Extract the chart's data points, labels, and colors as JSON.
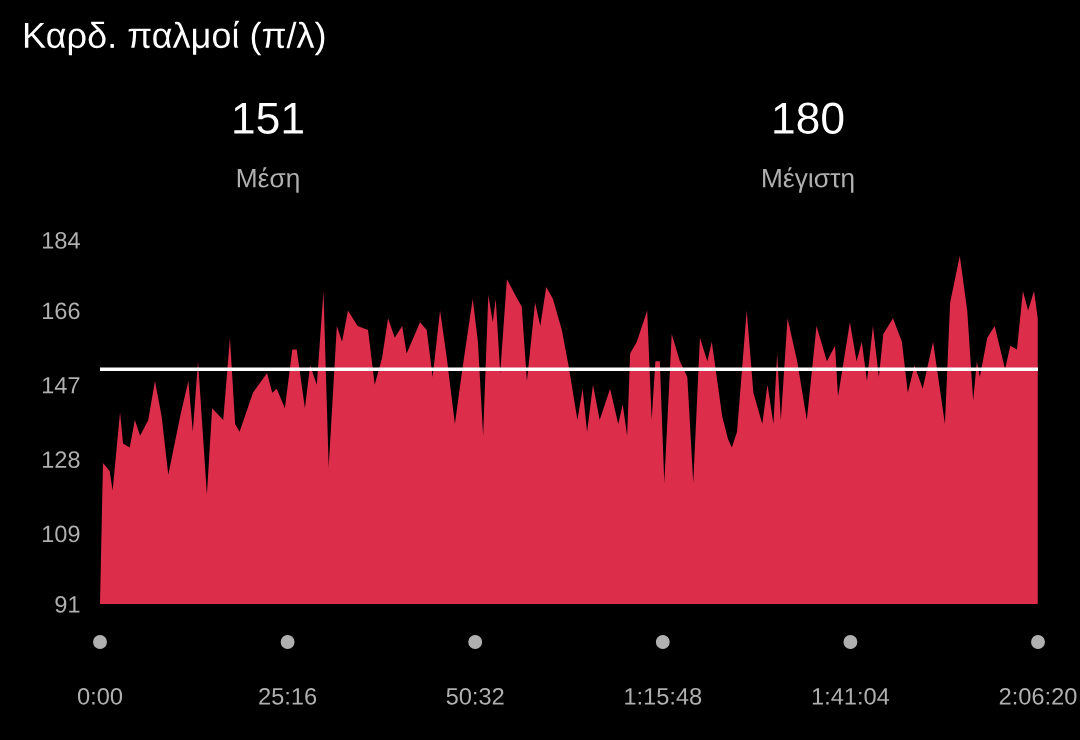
{
  "chart_data": {
    "type": "area",
    "title": "Καρδ. παλμοί (π/λ)",
    "annotations": [
      "151",
      "Μέση",
      "180",
      "Μέγιστη"
    ],
    "x": [
      0,
      0.4,
      1.3,
      1.7,
      2.7,
      3.1,
      4.0,
      4.7,
      5.4,
      6.5,
      7.4,
      8.3,
      9.2,
      10.8,
      11.9,
      12.5,
      13.2,
      14.4,
      15.1,
      16.6,
      17.5,
      18.2,
      18.8,
      20.6,
      22.5,
      23.2,
      23.8,
      24.9,
      25.9,
      26.5,
      27.6,
      28.3,
      29.2,
      30.1,
      30.8,
      31.9,
      32.6,
      33.4,
      34.7,
      36.1,
      37.0,
      38.0,
      38.8,
      39.7,
      40.7,
      41.3,
      43.1,
      44.0,
      44.8,
      45.8,
      46.7,
      47.8,
      48.8,
      50.2,
      50.9,
      51.6,
      52.3,
      52.9,
      53.3,
      53.9,
      54.8,
      56.2,
      56.8,
      57.5,
      58.6,
      59.3,
      60.1,
      61.0,
      62.2,
      63.1,
      64.3,
      65.0,
      65.6,
      66.4,
      67.3,
      68.7,
      69.8,
      70.4,
      71.0,
      71.4,
      72.3,
      73.7,
      74.3,
      74.8,
      75.4,
      76.0,
      77.0,
      78.1,
      79.1,
      79.9,
      80.8,
      81.8,
      82.4,
      83.8,
      84.6,
      85.1,
      85.8,
      87.1,
      88.0,
      89.2,
      89.9,
      90.7,
      91.2,
      91.7,
      92.6,
      93.9,
      95.2,
      96.5,
      97.9,
      99.0,
      99.4,
      101.0,
      101.9,
      102.6,
      103.3,
      104.1,
      104.9,
      105.5,
      106.8,
      108.0,
      108.8,
      109.7,
      110.8,
      112.2,
      113.8,
      114.5,
      115.8,
      116.8,
      117.6,
      118.1,
      118.5,
      119.5,
      120.5,
      121.9,
      122.6,
      123.5,
      124.3,
      125.0,
      125.8,
      126.3
    ],
    "series": [
      {
        "color": "#dc2d4b",
        "values": [
          91,
          127,
          125,
          120,
          140,
          132,
          131,
          138,
          134,
          138,
          148,
          139,
          124,
          139,
          148,
          135,
          153,
          119,
          141,
          138,
          159,
          137,
          135,
          145,
          150,
          145,
          146,
          141,
          156,
          156,
          141,
          152,
          147,
          171,
          126,
          162,
          158,
          166,
          162,
          161,
          147,
          154,
          164,
          159,
          162,
          155,
          163,
          161,
          149,
          166,
          154,
          137,
          151,
          169,
          158,
          134,
          170,
          163,
          169,
          150,
          174,
          169,
          167,
          148,
          168,
          162,
          172,
          169,
          161,
          152,
          138,
          146,
          135,
          147,
          138,
          146,
          137,
          142,
          134,
          155,
          158,
          166,
          138,
          153,
          153,
          122,
          160,
          153,
          149,
          122,
          159,
          153,
          158,
          139,
          133,
          131,
          135,
          166,
          145,
          137,
          147,
          137,
          155,
          138,
          164,
          153,
          138,
          162,
          153,
          157,
          144,
          163,
          153,
          158,
          148,
          162,
          149,
          160,
          164,
          158,
          145,
          152,
          146,
          158,
          137,
          168,
          180,
          166,
          143,
          153,
          149,
          159,
          162,
          151,
          157,
          156,
          171,
          166,
          171,
          164
        ]
      }
    ],
    "xlim": [
      0,
      126.3333
    ],
    "xticks": [
      {
        "value": 0,
        "label": "0:00"
      },
      {
        "value": 25.2667,
        "label": "25:16"
      },
      {
        "value": 50.5333,
        "label": "50:32"
      },
      {
        "value": 75.8,
        "label": "1:15:48"
      },
      {
        "value": 101.0667,
        "label": "1:41:04"
      },
      {
        "value": 126.3333,
        "label": "2:06:20"
      }
    ],
    "ylim": [
      91,
      184
    ],
    "yticks": [
      91,
      109,
      128,
      147,
      166,
      184
    ],
    "ref_lines": [
      {
        "axis": "y",
        "value": 151,
        "color": "#ffffff"
      }
    ],
    "grid": false,
    "legend": false
  }
}
